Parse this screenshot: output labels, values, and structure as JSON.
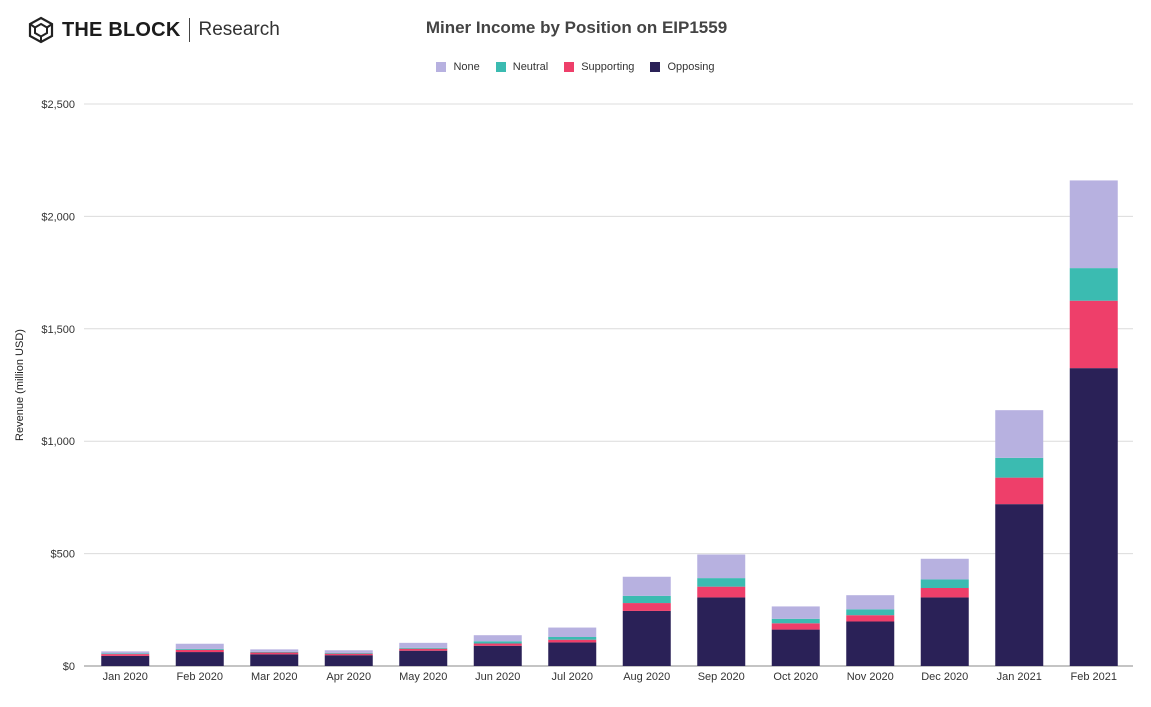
{
  "brand": {
    "name": "THE BLOCK",
    "sub": "Research"
  },
  "chart_data": {
    "type": "bar",
    "stacked": true,
    "title": "Miner Income by Position on EIP1559",
    "ylabel": "Revenue (million USD)",
    "xlabel": "",
    "ylim": [
      0,
      2500
    ],
    "yticks": [
      0,
      500,
      1000,
      1500,
      2000,
      2500
    ],
    "ytick_labels": [
      "$0",
      "$500",
      "$1,000",
      "$1,500",
      "$2,000",
      "$2,500"
    ],
    "grid": true,
    "legend_position": "top-center",
    "categories": [
      "Jan 2020",
      "Feb 2020",
      "Mar 2020",
      "Apr 2020",
      "May 2020",
      "Jun 2020",
      "Jul 2020",
      "Aug 2020",
      "Sep 2020",
      "Oct 2020",
      "Nov 2020",
      "Dec 2020",
      "Jan 2021",
      "Feb 2021"
    ],
    "series": [
      {
        "name": "Opposing",
        "color": "#2a2157",
        "values": [
          45,
          62,
          52,
          48,
          68,
          90,
          105,
          245,
          305,
          162,
          198,
          305,
          720,
          1325
        ]
      },
      {
        "name": "Supporting",
        "color": "#ee3f6a",
        "values": [
          8,
          10,
          8,
          7,
          9,
          10,
          12,
          35,
          48,
          28,
          28,
          42,
          118,
          300
        ]
      },
      {
        "name": "Neutral",
        "color": "#3bbbb1",
        "values": [
          3,
          4,
          3,
          3,
          4,
          10,
          12,
          32,
          38,
          20,
          26,
          38,
          88,
          145
        ]
      },
      {
        "name": "None",
        "color": "#b7b1e0",
        "values": [
          9,
          23,
          11,
          12,
          22,
          27,
          42,
          85,
          105,
          55,
          63,
          92,
          212,
          390
        ]
      }
    ],
    "legend_order": [
      "None",
      "Neutral",
      "Supporting",
      "Opposing"
    ]
  }
}
